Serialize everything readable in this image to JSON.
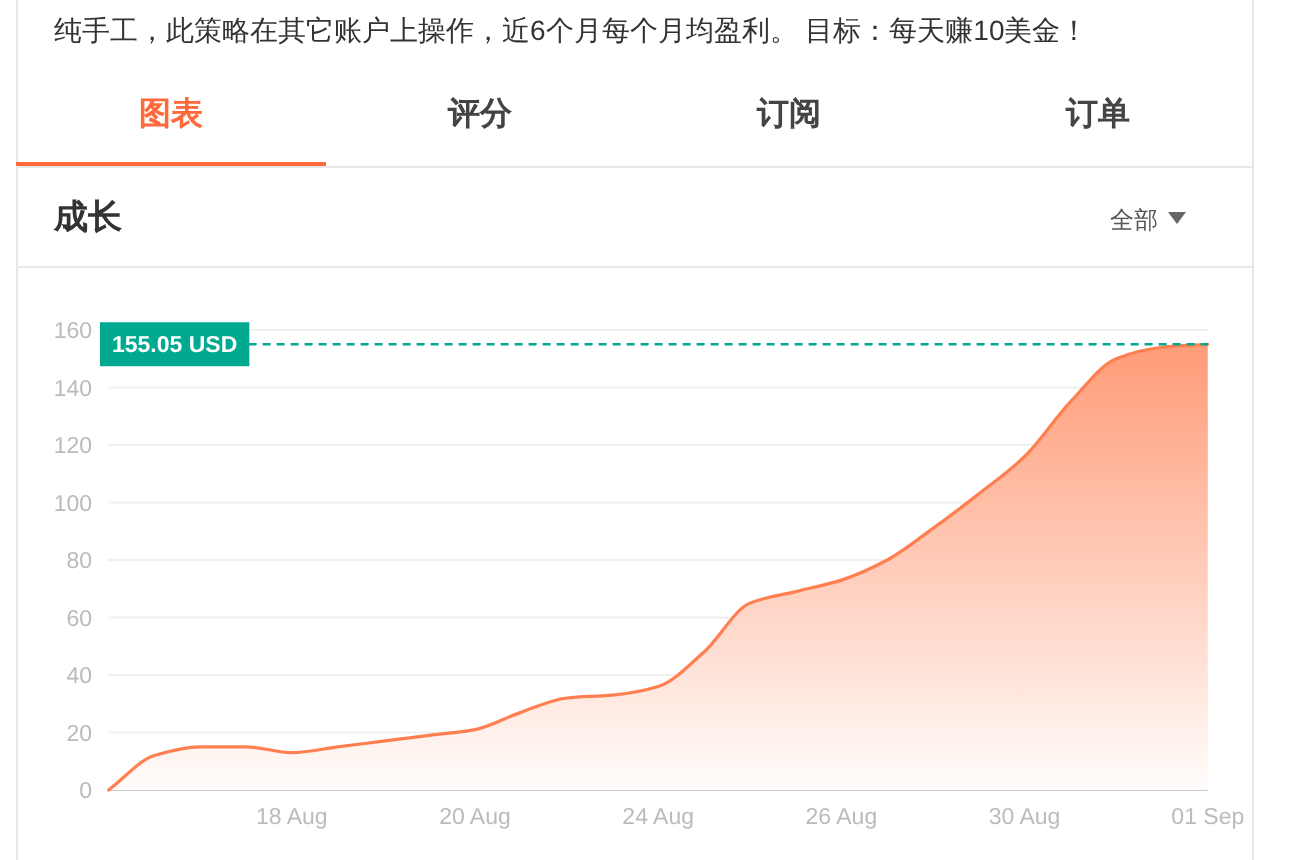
{
  "chart_data": {
    "type": "area",
    "title": "成长",
    "annotations": [
      "纯手工，此策略在其它账户上操作，近6个月每个月均盈利。 目标：每天赚10美金！",
      "图表",
      "评分",
      "订阅",
      "订单",
      "全部"
    ],
    "categories": [
      null,
      null,
      null,
      null,
      "18 Aug",
      null,
      null,
      null,
      "20 Aug",
      null,
      null,
      null,
      "24 Aug",
      null,
      null,
      null,
      "26 Aug",
      null,
      null,
      null,
      "30 Aug",
      null,
      null,
      null,
      "01 Sep"
    ],
    "values": [
      0,
      12,
      15,
      15,
      13,
      15,
      17,
      19,
      21,
      27,
      32,
      33,
      36,
      48,
      65,
      69,
      73,
      80,
      91,
      103,
      116,
      135,
      150,
      154,
      155.05
    ],
    "color": "#ff7f50",
    "ylim": [
      0,
      160
    ],
    "yticks": [
      0,
      20,
      40,
      60,
      80,
      100,
      120,
      140,
      160
    ],
    "grid": "y",
    "ref_lines": [
      {
        "axis": "y",
        "value": 155.05,
        "label": "155.05 USD",
        "color": "#00a98f",
        "line_style": "dashed"
      }
    ]
  }
}
